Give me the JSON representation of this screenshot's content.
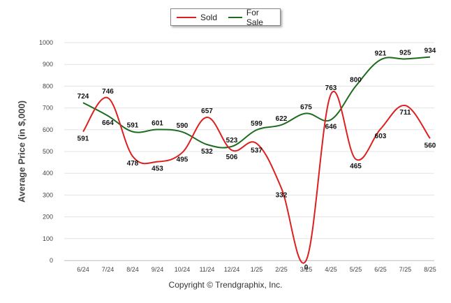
{
  "chart_data": {
    "type": "line",
    "title": "",
    "xlabel": "",
    "ylabel": "Average Price (in $,000)",
    "ylim": [
      0,
      1000
    ],
    "yticks": [
      0,
      100,
      200,
      300,
      400,
      500,
      600,
      700,
      800,
      900,
      1000
    ],
    "grid": true,
    "legend_position": "top-center",
    "categories": [
      "6/24",
      "7/24",
      "8/24",
      "9/24",
      "10/24",
      "11/24",
      "12/24",
      "1/25",
      "2/25",
      "3/25",
      "4/25",
      "5/25",
      "6/25",
      "7/25",
      "8/25"
    ],
    "series": [
      {
        "name": "Sold",
        "color": "#dd1f1f",
        "values": [
          591,
          746,
          478,
          453,
          495,
          657,
          506,
          537,
          332,
          0,
          763,
          465,
          603,
          711,
          560
        ]
      },
      {
        "name": "For Sale",
        "color": "#1e6b1e",
        "values": [
          724,
          664,
          591,
          601,
          590,
          532,
          523,
          599,
          622,
          675,
          646,
          800,
          921,
          925,
          934
        ]
      }
    ]
  },
  "footer": "Copyright © Trendgraphix, Inc."
}
